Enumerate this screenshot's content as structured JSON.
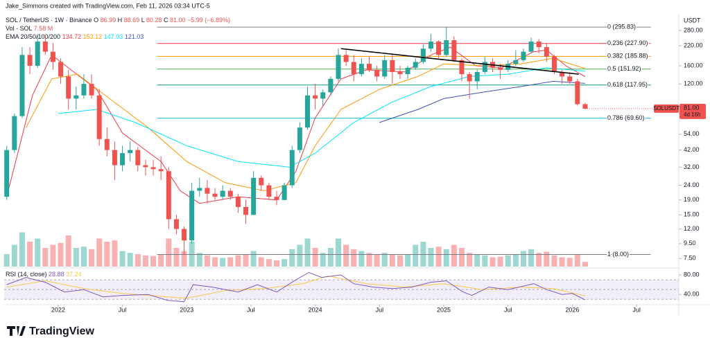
{
  "chart_data": {
    "type": "candlestick",
    "credit": "Jake_Simmons created with TradingView.com, Feb 11, 2026 03:34 UTC-5",
    "title": "SOL / TetherUS · 1W · Binance",
    "ohlc_legend": [
      "O",
      "86.99",
      "H",
      "88.69",
      "L",
      "80.28",
      "C",
      "81.00",
      "−5.99 (−6.89%)"
    ],
    "volume_legend": [
      "Vol · SOL",
      "7.58 M"
    ],
    "ema_legend": {
      "label": "EMA 20/50/100/200",
      "values": [
        "134.72",
        "153.12",
        "147.03",
        "121.03"
      ]
    },
    "axis_unit": "USDT",
    "log_scale": true,
    "up_color": "#26a69a",
    "down_color": "#ef5350",
    "x": [
      2021.6,
      2021.66,
      2021.72,
      2021.78,
      2021.84,
      2021.9,
      2021.96,
      2022.02,
      2022.08,
      2022.14,
      2022.2,
      2022.26,
      2022.32,
      2022.38,
      2022.44,
      2022.5,
      2022.56,
      2022.62,
      2022.68,
      2022.74,
      2022.8,
      2022.86,
      2022.92,
      2022.98,
      2023.04,
      2023.1,
      2023.16,
      2023.22,
      2023.28,
      2023.34,
      2023.4,
      2023.46,
      2023.52,
      2023.58,
      2023.64,
      2023.7,
      2023.76,
      2023.82,
      2023.88,
      2023.94,
      2024.0,
      2024.06,
      2024.12,
      2024.18,
      2024.24,
      2024.3,
      2024.36,
      2024.42,
      2024.48,
      2024.54,
      2024.6,
      2024.66,
      2024.72,
      2024.78,
      2024.84,
      2024.9,
      2024.96,
      2025.02,
      2025.08,
      2025.14,
      2025.2,
      2025.26,
      2025.32,
      2025.38,
      2025.44,
      2025.5,
      2025.56,
      2025.62,
      2025.68,
      2025.74,
      2025.8,
      2025.86,
      2025.92,
      2025.98,
      2026.04,
      2026.1
    ],
    "open": [
      20,
      42,
      72,
      190,
      160,
      235,
      200,
      170,
      135,
      95,
      100,
      120,
      100,
      50,
      42,
      33,
      40,
      42,
      33,
      32,
      31,
      30,
      14,
      12,
      10,
      22,
      23,
      21,
      20,
      22,
      20,
      17,
      15,
      27,
      24,
      20,
      19,
      24,
      42,
      60,
      100,
      95,
      105,
      130,
      190,
      170,
      140,
      165,
      150,
      135,
      175,
      145,
      140,
      155,
      170,
      210,
      235,
      190,
      240,
      175,
      140,
      125,
      145,
      170,
      155,
      150,
      165,
      175,
      200,
      235,
      215,
      185,
      145,
      135,
      125,
      86.99
    ],
    "high": [
      45,
      75,
      215,
      215,
      260,
      260,
      230,
      180,
      150,
      115,
      140,
      140,
      110,
      60,
      48,
      45,
      48,
      44,
      36,
      36,
      38,
      32,
      15,
      12.5,
      25,
      27,
      26,
      23,
      24,
      23,
      21,
      19,
      30,
      28,
      25,
      22,
      25,
      45,
      65,
      115,
      120,
      110,
      135,
      210,
      205,
      190,
      180,
      185,
      160,
      190,
      195,
      160,
      160,
      180,
      225,
      265,
      240,
      295,
      255,
      180,
      145,
      150,
      185,
      180,
      165,
      175,
      205,
      210,
      250,
      245,
      230,
      190,
      150,
      145,
      130,
      88.69
    ],
    "low": [
      19,
      40,
      70,
      140,
      155,
      190,
      150,
      120,
      80,
      80,
      95,
      95,
      45,
      38,
      26,
      30,
      35,
      30,
      28,
      28,
      26,
      12,
      11,
      8,
      9.5,
      20,
      18,
      19,
      19,
      19,
      15.5,
      13,
      15,
      22,
      19,
      17.5,
      19,
      23,
      40,
      58,
      80,
      85,
      100,
      125,
      160,
      125,
      135,
      145,
      125,
      130,
      120,
      130,
      130,
      150,
      165,
      200,
      180,
      185,
      170,
      125,
      95,
      110,
      140,
      145,
      130,
      145,
      160,
      170,
      195,
      195,
      170,
      140,
      120,
      120,
      85,
      80.28
    ],
    "close": [
      42,
      72,
      190,
      160,
      235,
      200,
      170,
      135,
      95,
      100,
      120,
      100,
      50,
      42,
      33,
      40,
      42,
      33,
      32,
      31,
      30,
      14,
      12,
      10,
      22,
      23,
      21,
      20,
      22,
      20,
      17,
      15,
      27,
      24,
      20,
      19,
      24,
      42,
      60,
      100,
      95,
      105,
      130,
      190,
      170,
      140,
      165,
      150,
      135,
      175,
      145,
      140,
      155,
      170,
      210,
      235,
      190,
      240,
      175,
      140,
      125,
      145,
      170,
      155,
      150,
      165,
      175,
      200,
      235,
      215,
      185,
      145,
      135,
      125,
      87,
      81
    ],
    "volume": [
      20,
      35,
      55,
      40,
      45,
      30,
      35,
      38,
      50,
      30,
      32,
      28,
      45,
      40,
      42,
      25,
      22,
      20,
      18,
      17,
      20,
      45,
      30,
      25,
      40,
      22,
      18,
      15,
      14,
      15,
      18,
      20,
      25,
      15,
      12,
      10,
      12,
      28,
      35,
      45,
      30,
      22,
      30,
      45,
      35,
      28,
      25,
      22,
      20,
      22,
      20,
      18,
      20,
      35,
      40,
      30,
      32,
      28,
      35,
      30,
      22,
      20,
      18,
      15,
      16,
      18,
      20,
      25,
      28,
      22,
      24,
      18,
      15,
      14,
      20,
      7.58
    ],
    "ema": [
      {
        "color": "#f23645",
        "x": [
          2021.6,
          2021.8,
          2021.95,
          2022.1,
          2022.3,
          2022.5,
          2022.8,
          2022.95,
          2023.1,
          2023.4,
          2023.7,
          2023.85,
          2024.0,
          2024.2,
          2024.4,
          2024.7,
          2024.9,
          2025.05,
          2025.25,
          2025.45,
          2025.7,
          2025.8,
          2025.95,
          2026.1
        ],
        "values": [
          20,
          100,
          190,
          150,
          110,
          55,
          35,
          22,
          18,
          20,
          19,
          30,
          70,
          130,
          150,
          145,
          190,
          215,
          160,
          155,
          200,
          205,
          160,
          134.72
        ]
      },
      {
        "color": "#ff9800",
        "x": [
          2021.75,
          2021.95,
          2022.15,
          2022.4,
          2022.7,
          2023.0,
          2023.3,
          2023.6,
          2023.85,
          2024.0,
          2024.2,
          2024.5,
          2024.8,
          2025.0,
          2025.3,
          2025.6,
          2025.85,
          2026.1
        ],
        "values": [
          60,
          130,
          140,
          95,
          60,
          35,
          25,
          22,
          25,
          45,
          80,
          110,
          135,
          165,
          160,
          165,
          180,
          153.12
        ]
      },
      {
        "color": "#00e5ff",
        "x": [
          2022.0,
          2022.3,
          2022.6,
          2023.0,
          2023.4,
          2023.8,
          2024.0,
          2024.3,
          2024.6,
          2024.9,
          2025.2,
          2025.5,
          2025.8,
          2026.1
        ],
        "values": [
          75,
          80,
          65,
          45,
          35,
          32,
          40,
          65,
          90,
          115,
          135,
          140,
          155,
          147.03
        ]
      },
      {
        "color": "#3f51b5",
        "x": [
          2024.5,
          2024.8,
          2025.0,
          2025.3,
          2025.6,
          2025.85,
          2026.1
        ],
        "values": [
          65,
          80,
          95,
          105,
          115,
          125,
          121.03
        ]
      }
    ],
    "fib": {
      "x": [
        2022.77,
        2026.61
      ],
      "levels": [
        {
          "label": "0 (295.83)",
          "value": 295.83,
          "color": "#787b86"
        },
        {
          "label": "0.236 (227.90)",
          "value": 227.9,
          "color": "#f23645"
        },
        {
          "label": "0.382 (185.88)",
          "value": 185.88,
          "color": "#ff9800"
        },
        {
          "label": "0.5 (151.92)",
          "value": 151.92,
          "color": "#4caf50"
        },
        {
          "label": "0.618 (117.95)",
          "value": 117.95,
          "color": "#089981"
        },
        {
          "label": "0.786 (69.60)",
          "value": 69.6,
          "color": "#00bcd4"
        },
        {
          "label": "1 (8.00)",
          "value": 8,
          "color": "#787b86"
        }
      ]
    },
    "trendline": {
      "x": [
        2024.2,
        2026.05
      ],
      "y": [
        210,
        140
      ],
      "color": "#000000"
    },
    "last_price": {
      "symbol": "SOLUSDT",
      "price": "81.00",
      "countdown": "4d 16h",
      "value": 81
    },
    "xlim": [
      2021.58,
      2026.78
    ],
    "xticks": [
      {
        "value": 2022,
        "label": "2022"
      },
      {
        "value": 2022.5,
        "label": "Jul"
      },
      {
        "value": 2023,
        "label": "2023"
      },
      {
        "value": 2023.5,
        "label": "Jul"
      },
      {
        "value": 2024,
        "label": "2024"
      },
      {
        "value": 2024.5,
        "label": "Jul"
      },
      {
        "value": 2025,
        "label": "2025"
      },
      {
        "value": 2025.5,
        "label": "Jul"
      },
      {
        "value": 2026,
        "label": "2026"
      },
      {
        "value": 2026.5,
        "label": "Jul"
      }
    ],
    "ylim": [
      6.6,
      306
    ],
    "yticks": [
      {
        "value": 280,
        "label": "280.00"
      },
      {
        "value": 220,
        "label": "220.00"
      },
      {
        "value": 160,
        "label": "160.00"
      },
      {
        "value": 120,
        "label": "120.00"
      },
      {
        "value": 54,
        "label": "54.00"
      },
      {
        "value": 42,
        "label": "42.00"
      },
      {
        "value": 32,
        "label": "32.00"
      },
      {
        "value": 24,
        "label": "24.00"
      },
      {
        "value": 19,
        "label": "19.00"
      },
      {
        "value": 15,
        "label": "15.00"
      },
      {
        "value": 12,
        "label": "12.00"
      },
      {
        "value": 9.5,
        "label": "9.50"
      },
      {
        "value": 7.5,
        "label": "7.50"
      }
    ],
    "rsi": {
      "label": "RSI (14, close)",
      "legend_values": [
        "28.88",
        "37.24"
      ],
      "ylim": [
        19,
        90
      ],
      "yticks": [
        {
          "value": 80,
          "label": "80.00"
        },
        {
          "value": 40,
          "label": "40.00"
        }
      ],
      "levels": [
        70,
        50,
        30
      ],
      "line": {
        "color": "#7e57c2",
        "x": [
          2021.6,
          2021.75,
          2021.9,
          2022.05,
          2022.2,
          2022.35,
          2022.5,
          2022.7,
          2022.85,
          2022.98,
          2023.05,
          2023.2,
          2023.4,
          2023.55,
          2023.7,
          2023.85,
          2023.95,
          2024.05,
          2024.2,
          2024.3,
          2024.45,
          2024.6,
          2024.75,
          2024.9,
          2025.02,
          2025.15,
          2025.22,
          2025.35,
          2025.5,
          2025.7,
          2025.8,
          2025.92,
          2026.0,
          2026.1
        ],
        "values": [
          60,
          75,
          65,
          45,
          50,
          35,
          38,
          40,
          28,
          25,
          60,
          55,
          45,
          60,
          45,
          70,
          85,
          75,
          80,
          62,
          55,
          52,
          55,
          65,
          68,
          45,
          38,
          55,
          50,
          62,
          50,
          40,
          42,
          28.88
        ]
      },
      "ma": {
        "color": "#f7c948",
        "x": [
          2021.6,
          2021.9,
          2022.2,
          2022.5,
          2022.8,
          2023.0,
          2023.3,
          2023.6,
          2023.9,
          2024.1,
          2024.4,
          2024.7,
          2025.0,
          2025.3,
          2025.6,
          2025.85,
          2026.1
        ],
        "values": [
          55,
          68,
          52,
          42,
          36,
          32,
          48,
          52,
          62,
          78,
          62,
          55,
          62,
          50,
          55,
          52,
          37.24
        ]
      }
    },
    "brand": "TradingView"
  }
}
